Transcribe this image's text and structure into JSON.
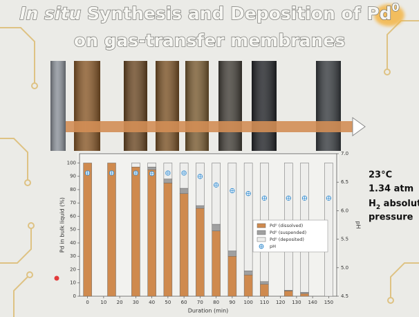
{
  "slide": {
    "title_italic": "In situ",
    "title_rest": " Synthesis and Deposition of ",
    "title_pd": "Pd",
    "title_sup": "0",
    "title_line2": "on gas-transfer membranes",
    "conditions": [
      "23°C",
      "1.34 atm"
    ],
    "pressure_h": "H",
    "pressure_sub": "2",
    "pressure_rest": " absolute",
    "pressure_line2": "pressure"
  },
  "chart_data": {
    "type": "bar",
    "stacked": true,
    "x": [
      0,
      15,
      30,
      40,
      50,
      60,
      70,
      80,
      90,
      100,
      110,
      125,
      135,
      150
    ],
    "xlim": [
      -5,
      155
    ],
    "xticks": [
      0,
      10,
      20,
      30,
      40,
      50,
      60,
      70,
      80,
      90,
      100,
      110,
      120,
      130,
      140,
      150
    ],
    "x_label": "Duration (min)",
    "ylim": [
      0,
      107
    ],
    "yticks": [
      0,
      10,
      20,
      30,
      40,
      50,
      60,
      70,
      80,
      90,
      100
    ],
    "y_label": "Pd in bulk liquid (%)",
    "y2lim": [
      4.5,
      7.0
    ],
    "y2ticks": [
      4.5,
      {
        "value": 5,
        "label": "5.0"
      },
      5.5,
      {
        "value": 6,
        "label": "6.0"
      },
      6.5,
      {
        "value": 7,
        "label": "7.0"
      }
    ],
    "y2_label": "pH",
    "series": [
      {
        "name": "Pd⁰ (dissolved)",
        "color": "#cf8a4e",
        "values": [
          100,
          100,
          97,
          95,
          85,
          77,
          66,
          49,
          30,
          16,
          9,
          4,
          2,
          0
        ]
      },
      {
        "name": "Pd⁰ (suspended)",
        "color": "#a0a0a0",
        "values": [
          0,
          0,
          0,
          2,
          3,
          4,
          2,
          5,
          4,
          3,
          2,
          0.5,
          1,
          0
        ]
      },
      {
        "name": "Pd⁰ (deposited)",
        "color": "#eeeeec",
        "values": [
          0,
          0,
          3,
          3,
          12,
          19,
          32,
          46,
          66,
          81,
          89,
          95.5,
          97,
          100
        ]
      },
      {
        "name": "pH",
        "color": "#3a8fd0",
        "axis": "y2",
        "type": "scatter",
        "values": [
          6.66,
          6.66,
          6.66,
          6.65,
          6.66,
          6.66,
          6.6,
          6.45,
          6.35,
          6.3,
          6.22,
          6.22,
          6.22,
          6.22
        ]
      }
    ]
  }
}
